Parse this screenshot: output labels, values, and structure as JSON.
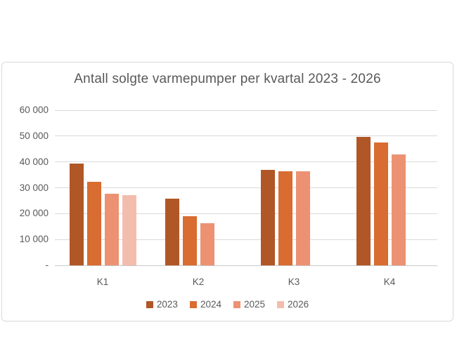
{
  "chart": {
    "title": "Antall solgte varmepumper per kvartal 2023 - 2026",
    "border_color": "#d9d9d9",
    "gridline_color": "#d9d9d9",
    "text_color": "#595959"
  },
  "chart_data": {
    "type": "bar",
    "title": "Antall solgte varmepumper per kvartal 2023 - 2026",
    "categories": [
      "K1",
      "K2",
      "K3",
      "K4"
    ],
    "series": [
      {
        "name": "2023",
        "color": "#b15627",
        "values": [
          39500,
          25700,
          36900,
          49600
        ]
      },
      {
        "name": "2024",
        "color": "#d96c30",
        "values": [
          32300,
          19000,
          36300,
          47400
        ]
      },
      {
        "name": "2025",
        "color": "#ec9273",
        "values": [
          27600,
          16300,
          36500,
          42800
        ]
      },
      {
        "name": "2026",
        "color": "#f3bdae",
        "values": [
          27100,
          null,
          null,
          null
        ]
      }
    ],
    "ylim": [
      0,
      60000
    ],
    "y_tick_step": 10000,
    "y_tick_labels": [
      "-",
      "10 000",
      "20 000",
      "30 000",
      "40 000",
      "50 000",
      "60 000"
    ],
    "xlabel": "",
    "ylabel": "",
    "grid": true,
    "legend_position": "bottom"
  }
}
